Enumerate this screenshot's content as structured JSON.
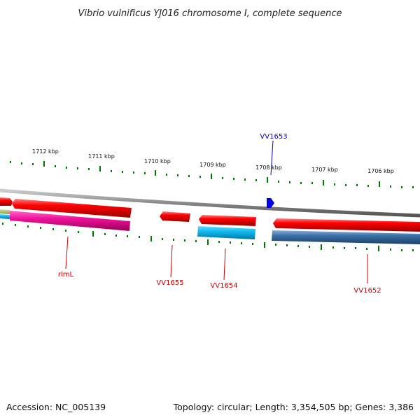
{
  "title": "Vibrio vulnificus YJ016 chromosome I, complete sequence",
  "footer": {
    "accession": "Accession: NC_005139",
    "summary": "Topology: circular; Length: 3,354,505 bp; Genes: 3,386"
  },
  "ruler": {
    "ticks": [
      "1712 kbp",
      "1711 kbp",
      "1710 kbp",
      "1709 kbp",
      "1708 kbp",
      "1707 kbp",
      "1706 kbp"
    ]
  },
  "genes": [
    {
      "label": "rlmL",
      "color": "#cc0000"
    },
    {
      "label": "VV1655",
      "color": "#cc0000"
    },
    {
      "label": "VV1654",
      "color": "#cc0000"
    },
    {
      "label": "VV1653",
      "color": "#0000cc"
    },
    {
      "label": "VV1652",
      "color": "#cc0000"
    }
  ],
  "colors": {
    "gene_red": "#ee0000",
    "gene_blue": "#0000ee",
    "pink": "#ee1199",
    "cyan": "#11bbee",
    "steel_blue": "#3a6ea5",
    "tick_green": "#007700",
    "backbone": "#888888"
  }
}
